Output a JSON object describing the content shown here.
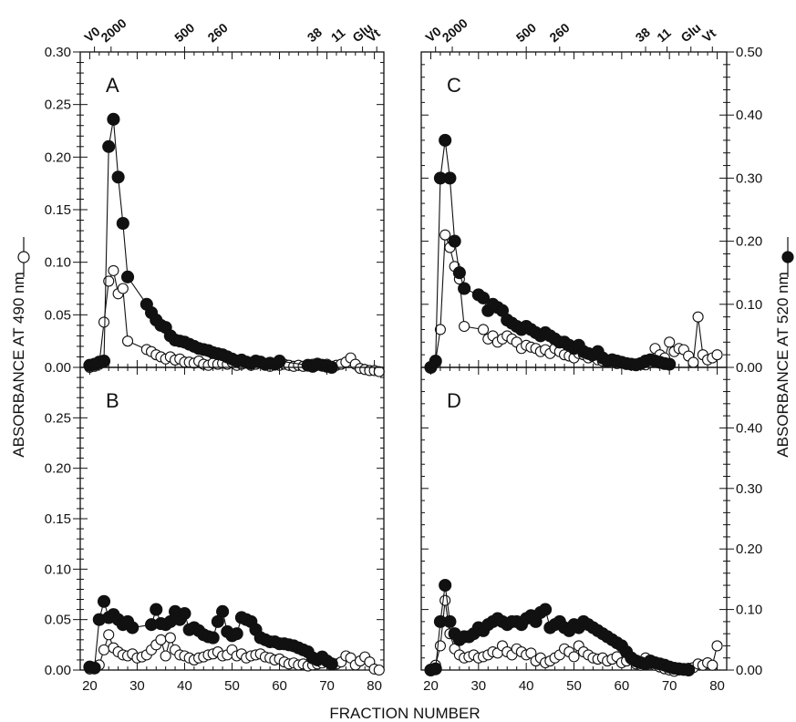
{
  "figure": {
    "xlabel": "FRACTION NUMBER",
    "ylabel_left": "ABSORBANCE AT 490 nm",
    "ylabel_right": "ABSORBANCE AT 520 nm",
    "series_colors": {
      "open": "#ffffff",
      "filled": "#111111",
      "stroke": "#111111"
    }
  },
  "chart_data": [
    {
      "type": "line",
      "panel": "A",
      "xlim": [
        18,
        82
      ],
      "ylim": [
        0,
        0.3
      ],
      "x_ticks": [
        20,
        30,
        40,
        50,
        60,
        70,
        80
      ],
      "y_ticks": [
        0.0,
        0.05,
        0.1,
        0.15,
        0.2,
        0.25,
        0.3
      ],
      "y_tick_labels": [
        "0.00",
        "0.05",
        "0.10",
        "0.15",
        "0.20",
        "0.25",
        "0.30"
      ],
      "top_markers": [
        {
          "label": "V0",
          "x": 21
        },
        {
          "label": "2000",
          "x": 24.5
        },
        {
          "label": "500",
          "x": 40
        },
        {
          "label": "260",
          "x": 47
        },
        {
          "label": "38",
          "x": 68
        },
        {
          "label": "11",
          "x": 73
        },
        {
          "label": "Glu",
          "x": 77.5
        },
        {
          "label": "Vt",
          "x": 80.5
        }
      ],
      "series": [
        {
          "style": "open",
          "axis": "left",
          "x": [
            20,
            21,
            22,
            23,
            24,
            25,
            26,
            27,
            28,
            32,
            33,
            34,
            35,
            36,
            37,
            38,
            39,
            40,
            41,
            42,
            43,
            44,
            45,
            46,
            47,
            48,
            49,
            50,
            51,
            52,
            53,
            54,
            55,
            56,
            57,
            58,
            59,
            60,
            61,
            62,
            63,
            64,
            65,
            66,
            67,
            68,
            69,
            70,
            71,
            72,
            73,
            74,
            75,
            76,
            77,
            78,
            79,
            80,
            81
          ],
          "y": [
            0.0,
            0.001,
            0.003,
            0.043,
            0.082,
            0.092,
            0.07,
            0.075,
            0.025,
            0.017,
            0.015,
            0.012,
            0.01,
            0.008,
            0.01,
            0.007,
            0.008,
            0.005,
            0.005,
            0.004,
            0.006,
            0.003,
            0.002,
            0.004,
            0.003,
            0.004,
            0.003,
            0.005,
            0.002,
            0.003,
            0.004,
            0.002,
            0.003,
            0.004,
            0.002,
            0.001,
            0.003,
            0.002,
            0.003,
            0.002,
            0.001,
            0.002,
            0.001,
            0.002,
            0.003,
            0.004,
            0.002,
            0.003,
            0.001,
            0.002,
            0.003,
            0.005,
            0.009,
            0.003,
            -0.001,
            -0.002,
            -0.003,
            -0.003,
            -0.004
          ]
        },
        {
          "style": "filled",
          "axis": "left",
          "x": [
            20,
            21,
            22,
            23,
            24,
            25,
            26,
            27,
            28,
            32,
            33,
            34,
            35,
            36,
            37,
            38,
            39,
            40,
            41,
            42,
            43,
            44,
            45,
            46,
            47,
            48,
            49,
            50,
            51,
            52,
            53,
            54,
            55,
            56,
            57,
            58,
            59,
            60,
            66,
            67,
            68,
            69,
            70,
            71
          ],
          "y": [
            0.002,
            0.003,
            0.005,
            0.006,
            0.21,
            0.236,
            0.181,
            0.137,
            0.086,
            0.06,
            0.052,
            0.045,
            0.04,
            0.038,
            0.03,
            0.026,
            0.025,
            0.024,
            0.022,
            0.02,
            0.018,
            0.017,
            0.016,
            0.014,
            0.013,
            0.012,
            0.01,
            0.008,
            0.006,
            0.007,
            0.005,
            0.004,
            0.006,
            0.005,
            0.003,
            0.004,
            0.003,
            0.006,
            0.002,
            0.001,
            0.003,
            0.002,
            0.001,
            0.0
          ]
        }
      ]
    },
    {
      "type": "line",
      "panel": "B",
      "xlim": [
        18,
        82
      ],
      "ylim": [
        0,
        0.3
      ],
      "x_ticks": [
        20,
        30,
        40,
        50,
        60,
        70,
        80
      ],
      "x_tick_labels": [
        "20",
        "30",
        "40",
        "50",
        "60",
        "70",
        "80"
      ],
      "y_ticks": [
        0.0,
        0.05,
        0.1,
        0.15,
        0.2,
        0.25
      ],
      "y_tick_labels": [
        "0.00",
        "0.05",
        "0.10",
        "0.15",
        "0.20",
        "0.25"
      ],
      "series": [
        {
          "style": "open",
          "axis": "left",
          "x": [
            20,
            21,
            22,
            23,
            24,
            25,
            26,
            27,
            28,
            29,
            30,
            31,
            32,
            33,
            34,
            35,
            36,
            37,
            38,
            39,
            40,
            41,
            42,
            43,
            44,
            45,
            46,
            47,
            48,
            49,
            50,
            51,
            52,
            53,
            54,
            55,
            56,
            57,
            58,
            59,
            60,
            61,
            62,
            63,
            64,
            65,
            66,
            67,
            68,
            69,
            70,
            71,
            72,
            73,
            74,
            75,
            76,
            77,
            78,
            79,
            80,
            81
          ],
          "y": [
            0.001,
            0.002,
            0.005,
            0.02,
            0.035,
            0.022,
            0.018,
            0.015,
            0.014,
            0.016,
            0.012,
            0.013,
            0.015,
            0.02,
            0.025,
            0.03,
            0.014,
            0.032,
            0.02,
            0.015,
            0.014,
            0.012,
            0.01,
            0.012,
            0.013,
            0.015,
            0.016,
            0.018,
            0.014,
            0.015,
            0.02,
            0.014,
            0.016,
            0.012,
            0.014,
            0.015,
            0.016,
            0.013,
            0.012,
            0.01,
            0.011,
            0.008,
            0.006,
            0.007,
            0.005,
            0.006,
            0.004,
            0.005,
            0.006,
            0.007,
            0.008,
            0.007,
            0.006,
            0.008,
            0.014,
            0.012,
            0.005,
            0.009,
            0.013,
            0.008,
            0.001,
            0.0
          ]
        },
        {
          "style": "filled",
          "axis": "left",
          "x": [
            20,
            21,
            22,
            23,
            24,
            25,
            26,
            27,
            28,
            29,
            33,
            34,
            35,
            36,
            37,
            38,
            39,
            40,
            41,
            42,
            43,
            44,
            45,
            46,
            47,
            48,
            49,
            50,
            51,
            52,
            53,
            54,
            55,
            56,
            57,
            58,
            59,
            60,
            61,
            62,
            63,
            64,
            65,
            66,
            67,
            68,
            69,
            70,
            71
          ],
          "y": [
            0.003,
            0.002,
            0.05,
            0.068,
            0.052,
            0.055,
            0.05,
            0.045,
            0.048,
            0.042,
            0.045,
            0.06,
            0.046,
            0.045,
            0.048,
            0.058,
            0.05,
            0.056,
            0.04,
            0.042,
            0.039,
            0.035,
            0.033,
            0.032,
            0.048,
            0.058,
            0.038,
            0.034,
            0.036,
            0.052,
            0.05,
            0.048,
            0.04,
            0.032,
            0.03,
            0.028,
            0.028,
            0.026,
            0.026,
            0.025,
            0.024,
            0.022,
            0.02,
            0.018,
            0.012,
            0.01,
            0.013,
            0.009,
            0.006
          ]
        }
      ]
    },
    {
      "type": "line",
      "panel": "C",
      "xlim": [
        18,
        82
      ],
      "ylim": [
        0,
        0.5
      ],
      "x_ticks": [
        20,
        30,
        40,
        50,
        60,
        70,
        80
      ],
      "y_ticks": [
        0.0,
        0.1,
        0.2,
        0.3,
        0.4,
        0.5
      ],
      "y_tick_labels": [
        "0.00",
        "0.10",
        "0.20",
        "0.30",
        "0.40",
        "0.50"
      ],
      "top_markers": [
        {
          "label": "V0",
          "x": 21
        },
        {
          "label": "2000",
          "x": 24.5
        },
        {
          "label": "500",
          "x": 40
        },
        {
          "label": "260",
          "x": 47
        },
        {
          "label": "38",
          "x": 65
        },
        {
          "label": "11",
          "x": 69.5
        },
        {
          "label": "Glu",
          "x": 74.5
        },
        {
          "label": "Vt",
          "x": 79
        }
      ],
      "series": [
        {
          "style": "open",
          "axis": "right",
          "x": [
            20,
            21,
            22,
            23,
            24,
            25,
            26,
            27,
            31,
            32,
            33,
            34,
            35,
            36,
            37,
            38,
            39,
            40,
            41,
            42,
            43,
            44,
            45,
            46,
            47,
            48,
            49,
            50,
            51,
            52,
            53,
            54,
            55,
            56,
            57,
            58,
            59,
            60,
            61,
            62,
            63,
            64,
            65,
            66,
            67,
            68,
            69,
            70,
            71,
            72,
            73,
            74,
            75,
            76,
            77,
            78,
            79,
            80
          ],
          "y": [
            0.0,
            0.01,
            0.06,
            0.21,
            0.19,
            0.16,
            0.14,
            0.065,
            0.06,
            0.045,
            0.05,
            0.04,
            0.045,
            0.05,
            0.045,
            0.04,
            0.03,
            0.035,
            0.032,
            0.03,
            0.025,
            0.028,
            0.022,
            0.03,
            0.025,
            0.02,
            0.018,
            0.015,
            0.022,
            0.02,
            0.015,
            0.017,
            0.012,
            0.01,
            0.008,
            0.01,
            0.006,
            0.008,
            0.005,
            0.006,
            0.003,
            0.005,
            0.004,
            0.008,
            0.03,
            0.02,
            0.015,
            0.04,
            0.025,
            0.03,
            0.028,
            0.018,
            0.008,
            0.08,
            0.02,
            0.012,
            0.015,
            0.02
          ]
        },
        {
          "style": "filled",
          "axis": "right",
          "x": [
            20,
            21,
            22,
            23,
            24,
            25,
            26,
            27,
            30,
            31,
            32,
            33,
            34,
            35,
            36,
            37,
            38,
            39,
            40,
            41,
            42,
            43,
            44,
            45,
            46,
            47,
            48,
            49,
            50,
            51,
            52,
            53,
            54,
            55,
            56,
            57,
            58,
            59,
            60,
            61,
            62,
            63,
            64,
            65,
            66,
            67,
            68,
            69,
            70
          ],
          "y": [
            0.0,
            0.01,
            0.3,
            0.36,
            0.3,
            0.2,
            0.15,
            0.125,
            0.115,
            0.11,
            0.09,
            0.1,
            0.095,
            0.09,
            0.075,
            0.07,
            0.065,
            0.06,
            0.065,
            0.06,
            0.055,
            0.05,
            0.055,
            0.05,
            0.045,
            0.04,
            0.04,
            0.035,
            0.03,
            0.035,
            0.025,
            0.022,
            0.02,
            0.025,
            0.015,
            0.01,
            0.012,
            0.01,
            0.008,
            0.006,
            0.005,
            0.004,
            0.006,
            0.01,
            0.012,
            0.01,
            0.008,
            0.006,
            0.005
          ]
        }
      ]
    },
    {
      "type": "line",
      "panel": "D",
      "xlim": [
        18,
        82
      ],
      "ylim": [
        0,
        0.5
      ],
      "x_ticks": [
        20,
        30,
        40,
        50,
        60,
        70,
        80
      ],
      "x_tick_labels": [
        "20",
        "30",
        "40",
        "50",
        "60",
        "70",
        "80"
      ],
      "y_ticks": [
        0.0,
        0.1,
        0.2,
        0.3,
        0.4
      ],
      "y_tick_labels": [
        "0.00",
        "0.10",
        "0.20",
        "0.30",
        "0.40"
      ],
      "series": [
        {
          "style": "open",
          "axis": "right",
          "x": [
            20,
            21,
            22,
            23,
            24,
            25,
            26,
            27,
            28,
            29,
            30,
            31,
            32,
            33,
            34,
            35,
            36,
            37,
            38,
            39,
            40,
            41,
            42,
            43,
            44,
            45,
            46,
            47,
            48,
            49,
            50,
            51,
            52,
            53,
            54,
            55,
            56,
            57,
            58,
            59,
            60,
            61,
            62,
            63,
            64,
            65,
            66,
            67,
            68,
            69,
            70,
            71,
            72,
            73,
            74,
            75,
            76,
            77,
            78,
            79,
            80
          ],
          "y": [
            0.0,
            0.008,
            0.04,
            0.115,
            0.06,
            0.035,
            0.025,
            0.02,
            0.022,
            0.025,
            0.02,
            0.022,
            0.025,
            0.03,
            0.028,
            0.04,
            0.03,
            0.025,
            0.035,
            0.03,
            0.025,
            0.028,
            0.015,
            0.02,
            0.012,
            0.015,
            0.02,
            0.025,
            0.035,
            0.03,
            0.022,
            0.04,
            0.03,
            0.025,
            0.02,
            0.018,
            0.02,
            0.015,
            0.018,
            0.022,
            0.012,
            0.015,
            0.018,
            0.01,
            0.008,
            0.02,
            0.015,
            0.008,
            0.005,
            0.002,
            0.0,
            -0.002,
            0.0,
            0.002,
            0.003,
            0.004,
            0.01,
            0.008,
            0.012,
            0.008,
            0.04
          ]
        },
        {
          "style": "filled",
          "axis": "right",
          "x": [
            20,
            21,
            22,
            23,
            24,
            25,
            26,
            27,
            28,
            29,
            30,
            31,
            32,
            33,
            34,
            35,
            36,
            37,
            38,
            39,
            40,
            41,
            42,
            43,
            44,
            45,
            46,
            47,
            48,
            49,
            50,
            51,
            52,
            53,
            54,
            55,
            56,
            57,
            58,
            59,
            60,
            61,
            62,
            63,
            64,
            65,
            66,
            67,
            68,
            69,
            70,
            71,
            72,
            73,
            74
          ],
          "y": [
            0.0,
            0.002,
            0.08,
            0.14,
            0.08,
            0.06,
            0.05,
            0.055,
            0.055,
            0.06,
            0.07,
            0.065,
            0.075,
            0.08,
            0.085,
            0.08,
            0.075,
            0.08,
            0.08,
            0.075,
            0.085,
            0.09,
            0.08,
            0.095,
            0.1,
            0.07,
            0.075,
            0.08,
            0.07,
            0.065,
            0.075,
            0.07,
            0.08,
            0.075,
            0.07,
            0.065,
            0.06,
            0.055,
            0.05,
            0.045,
            0.04,
            0.03,
            0.02,
            0.015,
            0.012,
            0.01,
            0.015,
            0.012,
            0.01,
            0.008,
            0.005,
            0.003,
            0.002,
            0.001,
            0.0
          ]
        }
      ]
    }
  ]
}
